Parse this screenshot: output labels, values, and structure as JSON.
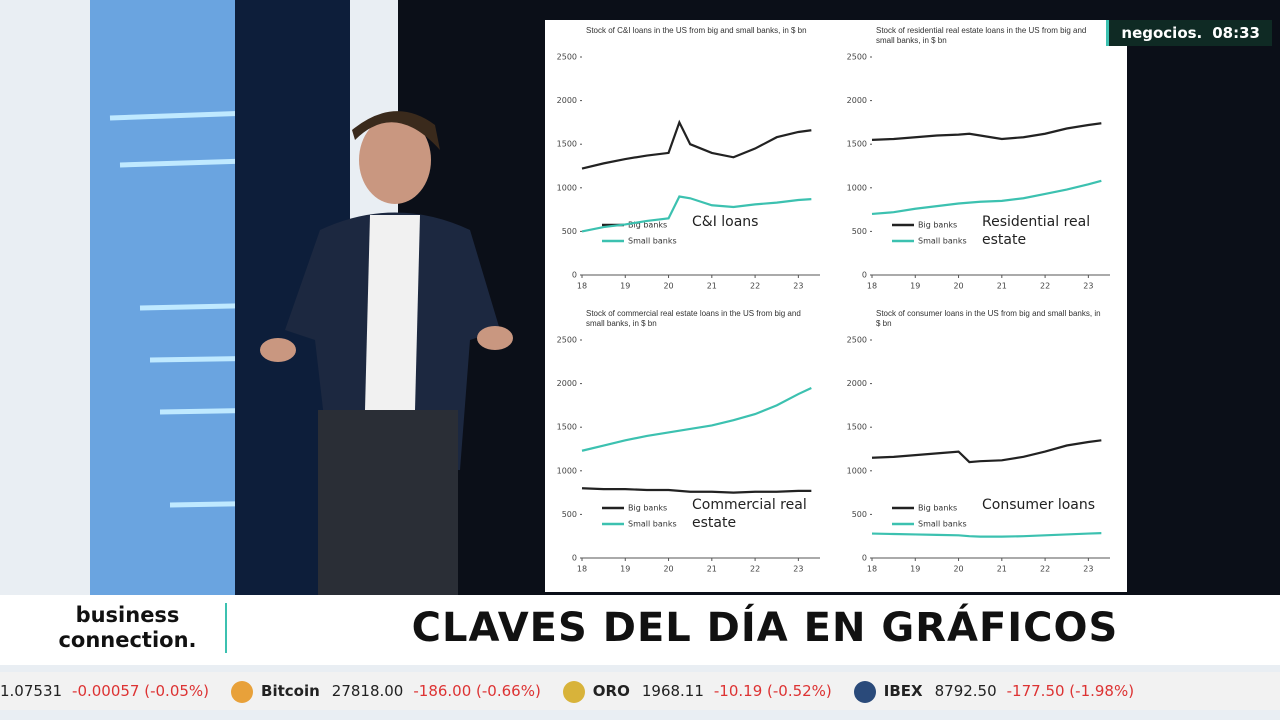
{
  "channel": "negocios.",
  "time": "08:33",
  "show": "business connection.",
  "headline": "CLAVES DEL DÍA EN GRÁFICOS",
  "ticker": [
    {
      "price": "1.07531",
      "change": "-0.00057 (-0.05%)"
    },
    {
      "name": "Bitcoin",
      "price": "27818.00",
      "change": "-186.00 (-0.66%)"
    },
    {
      "name": "ORO",
      "price": "1968.11",
      "change": "-10.19 (-0.52%)"
    },
    {
      "name": "IBEX",
      "price": "8792.50",
      "change": "-177.50 (-1.98%)"
    }
  ],
  "chart_data": [
    {
      "type": "line",
      "title": "Stock of C&I loans in the US from big and small banks, in $ bn",
      "annotation": "C&I loans",
      "x": [
        18,
        18.5,
        19,
        19.5,
        20,
        20.25,
        20.5,
        21,
        21.5,
        22,
        22.5,
        23,
        23.3
      ],
      "series": [
        {
          "name": "Big banks",
          "color": "#222222",
          "values": [
            1220,
            1280,
            1330,
            1370,
            1400,
            1750,
            1500,
            1400,
            1350,
            1450,
            1580,
            1640,
            1660
          ]
        },
        {
          "name": "Small banks",
          "color": "#3cc1b0",
          "values": [
            500,
            550,
            580,
            620,
            650,
            900,
            880,
            800,
            780,
            810,
            830,
            860,
            870
          ]
        }
      ],
      "xlim": [
        18,
        23.5
      ],
      "xticks": [
        18,
        19,
        20,
        21,
        22,
        23
      ],
      "ylim": [
        0,
        2500
      ],
      "yticks": [
        0,
        500,
        1000,
        1500,
        2000,
        2500
      ]
    },
    {
      "type": "line",
      "title": "Stock of residential real estate loans in the US from big and small banks, in $ bn",
      "annotation": "Residential real estate",
      "x": [
        18,
        18.5,
        19,
        19.5,
        20,
        20.25,
        20.5,
        21,
        21.5,
        22,
        22.5,
        23,
        23.3
      ],
      "series": [
        {
          "name": "Big banks",
          "color": "#222222",
          "values": [
            1550,
            1560,
            1580,
            1600,
            1610,
            1620,
            1600,
            1560,
            1580,
            1620,
            1680,
            1720,
            1740
          ]
        },
        {
          "name": "Small banks",
          "color": "#3cc1b0",
          "values": [
            700,
            720,
            760,
            790,
            820,
            830,
            840,
            850,
            880,
            930,
            980,
            1040,
            1080
          ]
        }
      ],
      "xlim": [
        18,
        23.5
      ],
      "xticks": [
        18,
        19,
        20,
        21,
        22,
        23
      ],
      "ylim": [
        0,
        2500
      ],
      "yticks": [
        0,
        500,
        1000,
        1500,
        2000,
        2500
      ]
    },
    {
      "type": "line",
      "title": "Stock of commercial real estate loans in the US from big and small banks, in $ bn",
      "annotation": "Commercial real estate",
      "x": [
        18,
        18.5,
        19,
        19.5,
        20,
        20.25,
        20.5,
        21,
        21.5,
        22,
        22.5,
        23,
        23.3
      ],
      "series": [
        {
          "name": "Big banks",
          "color": "#222222",
          "values": [
            800,
            790,
            790,
            780,
            780,
            770,
            760,
            760,
            750,
            760,
            760,
            770,
            770
          ]
        },
        {
          "name": "Small banks",
          "color": "#3cc1b0",
          "values": [
            1230,
            1290,
            1350,
            1400,
            1440,
            1460,
            1480,
            1520,
            1580,
            1650,
            1750,
            1880,
            1950
          ]
        }
      ],
      "xlim": [
        18,
        23.5
      ],
      "xticks": [
        18,
        19,
        20,
        21,
        22,
        23
      ],
      "ylim": [
        0,
        2500
      ],
      "yticks": [
        0,
        500,
        1000,
        1500,
        2000,
        2500
      ]
    },
    {
      "type": "line",
      "title": "Stock of consumer loans in the US from big and small banks, in $ bn",
      "annotation": "Consumer loans",
      "x": [
        18,
        18.5,
        19,
        19.5,
        20,
        20.25,
        20.5,
        21,
        21.5,
        22,
        22.5,
        23,
        23.3
      ],
      "series": [
        {
          "name": "Big banks",
          "color": "#222222",
          "values": [
            1150,
            1160,
            1180,
            1200,
            1220,
            1100,
            1110,
            1120,
            1160,
            1220,
            1290,
            1330,
            1350
          ]
        },
        {
          "name": "Small banks",
          "color": "#3cc1b0",
          "values": [
            280,
            275,
            270,
            265,
            260,
            250,
            245,
            245,
            250,
            260,
            270,
            280,
            285
          ]
        }
      ],
      "xlim": [
        18,
        23.5
      ],
      "xticks": [
        18,
        19,
        20,
        21,
        22,
        23
      ],
      "ylim": [
        0,
        2500
      ],
      "yticks": [
        0,
        500,
        1000,
        1500,
        2000,
        2500
      ]
    }
  ]
}
